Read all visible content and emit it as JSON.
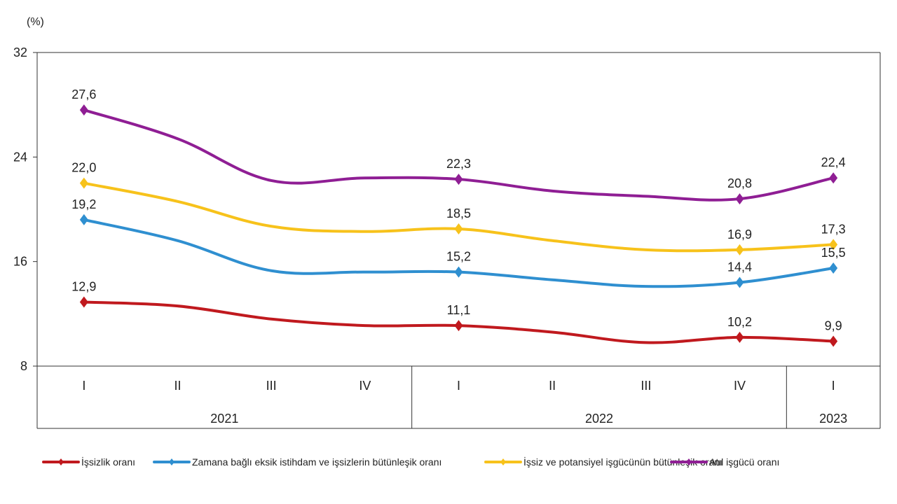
{
  "chart_data": {
    "type": "line",
    "unit_label": "(%)",
    "yticks": [
      8,
      16,
      24,
      32
    ],
    "ylim": [
      8,
      32
    ],
    "categories": [
      "I",
      "II",
      "III",
      "IV",
      "I",
      "II",
      "III",
      "IV",
      "I"
    ],
    "years": [
      {
        "label": "2021",
        "start": 0,
        "end": 3
      },
      {
        "label": "2022",
        "start": 4,
        "end": 7
      },
      {
        "label": "2023",
        "start": 8,
        "end": 8
      }
    ],
    "legend_position": "bottom",
    "series": [
      {
        "name": "İşsizlik oranı",
        "color": "#c0191e",
        "values": [
          12.9,
          12.6,
          11.6,
          11.1,
          11.1,
          10.6,
          9.8,
          10.2,
          9.9
        ],
        "labels": {
          "0": "12,9",
          "4": "11,1",
          "7": "10,2",
          "8": "9,9"
        }
      },
      {
        "name": "Zamana bağlı eksik istihdam ve işsizlerin bütünleşik oranı",
        "color": "#2f8fd0",
        "values": [
          19.2,
          17.6,
          15.3,
          15.2,
          15.2,
          14.6,
          14.1,
          14.4,
          15.5
        ],
        "labels": {
          "0": "19,2",
          "4": "15,2",
          "7": "14,4",
          "8": "15,5"
        }
      },
      {
        "name": "İşsiz ve potansiyel işgücünün bütünleşik oranı",
        "color": "#f7c21b",
        "values": [
          22.0,
          20.6,
          18.7,
          18.3,
          18.5,
          17.6,
          16.9,
          16.9,
          17.3
        ],
        "labels": {
          "0": "22,0",
          "4": "18,5",
          "7": "16,9",
          "8": "17,3"
        }
      },
      {
        "name": "Atıl işgücü oranı",
        "color": "#8f1e94",
        "values": [
          27.6,
          25.4,
          22.2,
          22.4,
          22.3,
          21.4,
          21.0,
          20.8,
          22.4
        ],
        "labels": {
          "0": "27,6",
          "4": "22,3",
          "7": "20,8",
          "8": "22,4"
        }
      }
    ]
  }
}
